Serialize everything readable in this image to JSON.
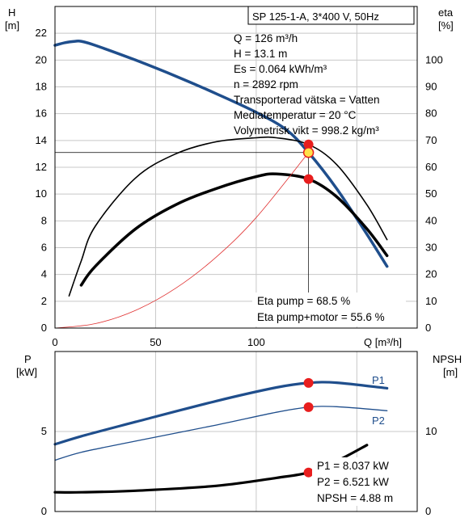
{
  "chart_data": [
    {
      "type": "line",
      "title": "SP 125-1-A, 3*400 V, 50Hz",
      "xlabel": "Q [m³/h]",
      "xlim": [
        0,
        180
      ],
      "x_ticks": [
        "0",
        "50",
        "100"
      ],
      "ylabel_left": [
        "H",
        "[m]"
      ],
      "ylim_left": [
        0,
        24
      ],
      "y_ticks_left": [
        "0",
        "2",
        "4",
        "6",
        "8",
        "10",
        "12",
        "14",
        "16",
        "18",
        "20",
        "22"
      ],
      "ylabel_right": [
        "eta",
        "[%]"
      ],
      "ylim_right": [
        0,
        120
      ],
      "y_ticks_right": [
        "0",
        "10",
        "20",
        "30",
        "40",
        "50",
        "60",
        "70",
        "80",
        "90",
        "100"
      ],
      "grid": true,
      "info_lines": [
        "Q = 126 m³/h",
        "H = 13.1 m",
        "Es = 0.064 kWh/m³",
        "n = 2892 rpm",
        "Transporterad vätska = Vatten",
        "Mediatemperatur = 20 °C",
        "Volymetrisk vikt = 998.2 kg/m³"
      ],
      "eta_labels": [
        "Eta pump = 68.5 %",
        "Eta pump+motor = 55.6 %"
      ],
      "duty_point": {
        "Q": 126,
        "H": 13.1
      },
      "series": [
        {
          "role": "head",
          "axis": "left",
          "color": "#1f4e8c",
          "x": [
            0,
            5,
            10,
            13,
            20,
            40,
            60,
            80,
            100,
            115,
            126,
            140,
            155,
            165
          ],
          "y": [
            21.1,
            21.3,
            21.4,
            21.4,
            21.1,
            20.0,
            18.8,
            17.5,
            16.1,
            14.8,
            13.1,
            10.4,
            7.0,
            4.6
          ]
        },
        {
          "role": "eta-pump",
          "axis": "right",
          "color": "#000000",
          "x": [
            7,
            13,
            20,
            40,
            60,
            80,
            100,
            110,
            126,
            140,
            155,
            165
          ],
          "y": [
            12,
            25,
            38,
            56,
            65,
            69.5,
            71,
            71,
            68.5,
            61,
            46,
            33
          ]
        },
        {
          "role": "eta-pump-motor",
          "axis": "right",
          "color": "#000000",
          "x": [
            13,
            20,
            40,
            60,
            80,
            100,
            110,
            126,
            140,
            155,
            165
          ],
          "y": [
            16,
            23,
            37,
            46,
            52,
            56.5,
            57.5,
            55.6,
            49,
            37,
            27
          ]
        },
        {
          "role": "system-curve",
          "axis": "left",
          "color": "#e03030",
          "x": [
            0,
            20,
            40,
            60,
            80,
            100,
            126
          ],
          "y": [
            0,
            0.33,
            1.32,
            2.97,
            5.28,
            8.25,
            13.1
          ]
        }
      ]
    },
    {
      "type": "line",
      "xlim": [
        0,
        180
      ],
      "ylabel_left": [
        "P",
        "[kW]"
      ],
      "ylim_left": [
        0,
        10
      ],
      "y_ticks_left": [
        "0",
        "5"
      ],
      "ylabel_right": [
        "NPSH",
        "[m]"
      ],
      "ylim_right": [
        0,
        20
      ],
      "y_ticks_right": [
        "0",
        "10"
      ],
      "grid": true,
      "legend": [
        "P1",
        "P2"
      ],
      "readout": [
        "P1 = 8.037 kW",
        "P2 = 6.521 kW",
        "NPSH = 4.88 m"
      ],
      "series": [
        {
          "name": "P1",
          "axis": "left",
          "color": "#1f4e8c",
          "x": [
            0,
            13,
            40,
            80,
            110,
            126,
            140,
            165
          ],
          "y": [
            4.2,
            4.7,
            5.6,
            6.9,
            7.75,
            8.037,
            8.05,
            7.7
          ]
        },
        {
          "name": "P2",
          "axis": "left",
          "color": "#1f4e8c",
          "x": [
            0,
            13,
            40,
            80,
            110,
            126,
            140,
            165
          ],
          "y": [
            3.2,
            3.7,
            4.4,
            5.4,
            6.2,
            6.521,
            6.55,
            6.3
          ]
        },
        {
          "role": "npsh",
          "axis": "right",
          "color": "#000000",
          "x": [
            0,
            13,
            40,
            80,
            110,
            126,
            140,
            155
          ],
          "y": [
            2.4,
            2.4,
            2.6,
            3.2,
            4.2,
            4.88,
            6.3,
            8.3
          ]
        }
      ]
    }
  ]
}
